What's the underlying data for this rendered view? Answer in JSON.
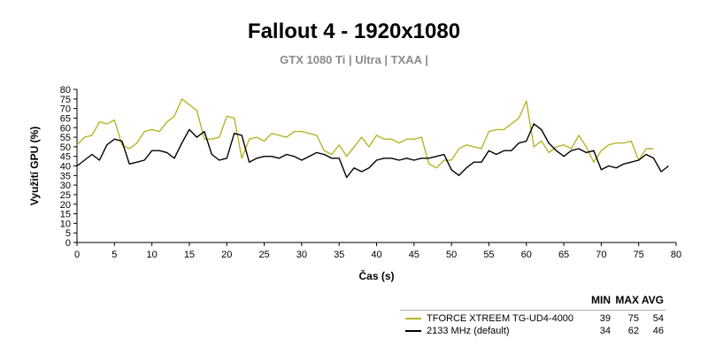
{
  "chart_data": {
    "type": "line",
    "title": "Fallout 4 - 1920x1080",
    "subtitle": "GTX 1080 Ti | Ultra | TXAA |",
    "xlabel": "Čas (s)",
    "ylabel": "Využití GPU (%)",
    "xlim": [
      0,
      80
    ],
    "ylim": [
      0,
      80
    ],
    "xticks": [
      0,
      5,
      10,
      15,
      20,
      25,
      30,
      35,
      40,
      45,
      50,
      55,
      60,
      65,
      70,
      75,
      80
    ],
    "yticks": [
      0,
      5,
      10,
      15,
      20,
      25,
      30,
      35,
      40,
      45,
      50,
      55,
      60,
      65,
      70,
      75,
      80
    ],
    "grid": false,
    "legend_position": "bottom-right",
    "legend_headers": [
      "MIN",
      "MAX",
      "AVG"
    ],
    "series": [
      {
        "name": "TFORCE XTREEM TG-UD4-4000",
        "color": "#b5b52a",
        "min": "39",
        "max": "75",
        "avg": "54",
        "x": [
          0,
          1,
          2,
          3,
          4,
          5,
          6,
          7,
          8,
          9,
          10,
          11,
          12,
          13,
          14,
          15,
          16,
          17,
          18,
          19,
          20,
          21,
          22,
          23,
          24,
          25,
          26,
          27,
          28,
          29,
          30,
          31,
          32,
          33,
          34,
          35,
          36,
          37,
          38,
          39,
          40,
          41,
          42,
          43,
          44,
          45,
          46,
          47,
          48,
          49,
          50,
          51,
          52,
          53,
          54,
          55,
          56,
          57,
          58,
          59,
          60,
          61,
          62,
          63,
          64,
          65,
          66,
          67,
          68,
          69,
          70,
          71,
          72,
          73,
          74,
          75,
          76,
          77,
          78
        ],
        "values": [
          51,
          55,
          56,
          63,
          62,
          64,
          51,
          49,
          52,
          58,
          59,
          58,
          63,
          66,
          75,
          72,
          69,
          54,
          54,
          55,
          66,
          65,
          44,
          54,
          55,
          53,
          57,
          56,
          55,
          58,
          58,
          57,
          56,
          48,
          46,
          51,
          45,
          50,
          55,
          50,
          56,
          54,
          54,
          52,
          54,
          54,
          55,
          41,
          39,
          43,
          43,
          49,
          51,
          50,
          49,
          58,
          59,
          59,
          62,
          65,
          74,
          50,
          53,
          47,
          50,
          51,
          49,
          56,
          50,
          42,
          48,
          51,
          52,
          52,
          53,
          43,
          49,
          49,
          null
        ],
        "values_extra_note": ""
      },
      {
        "name": "2133 MHz (default)",
        "color": "#000000",
        "min": "34",
        "max": "62",
        "avg": "46",
        "x": [
          0,
          1,
          2,
          3,
          4,
          5,
          6,
          7,
          8,
          9,
          10,
          11,
          12,
          13,
          14,
          15,
          16,
          17,
          18,
          19,
          20,
          21,
          22,
          23,
          24,
          25,
          26,
          27,
          28,
          29,
          30,
          31,
          32,
          33,
          34,
          35,
          36,
          37,
          38,
          39,
          40,
          41,
          42,
          43,
          44,
          45,
          46,
          47,
          48,
          49,
          50,
          51,
          52,
          53,
          54,
          55,
          56,
          57,
          58,
          59,
          60,
          61,
          62,
          63,
          64,
          65,
          66,
          67,
          68,
          69,
          70,
          71,
          72,
          73,
          74,
          75,
          76,
          77,
          78,
          79
        ],
        "values": [
          40,
          43,
          46,
          43,
          51,
          54,
          53,
          41,
          42,
          43,
          48,
          48,
          47,
          44,
          52,
          59,
          55,
          58,
          46,
          43,
          44,
          57,
          56,
          42,
          44,
          45,
          45,
          44,
          46,
          45,
          43,
          45,
          47,
          46,
          44,
          44,
          34,
          39,
          37,
          39,
          43,
          44,
          44,
          43,
          44,
          43,
          44,
          44,
          45,
          46,
          38,
          35,
          39,
          42,
          42,
          48,
          46,
          48,
          48,
          52,
          53,
          62,
          59,
          52,
          48,
          45,
          48,
          49,
          47,
          48,
          38,
          40,
          39,
          41,
          42,
          43,
          46,
          44,
          37,
          40
        ]
      }
    ]
  }
}
